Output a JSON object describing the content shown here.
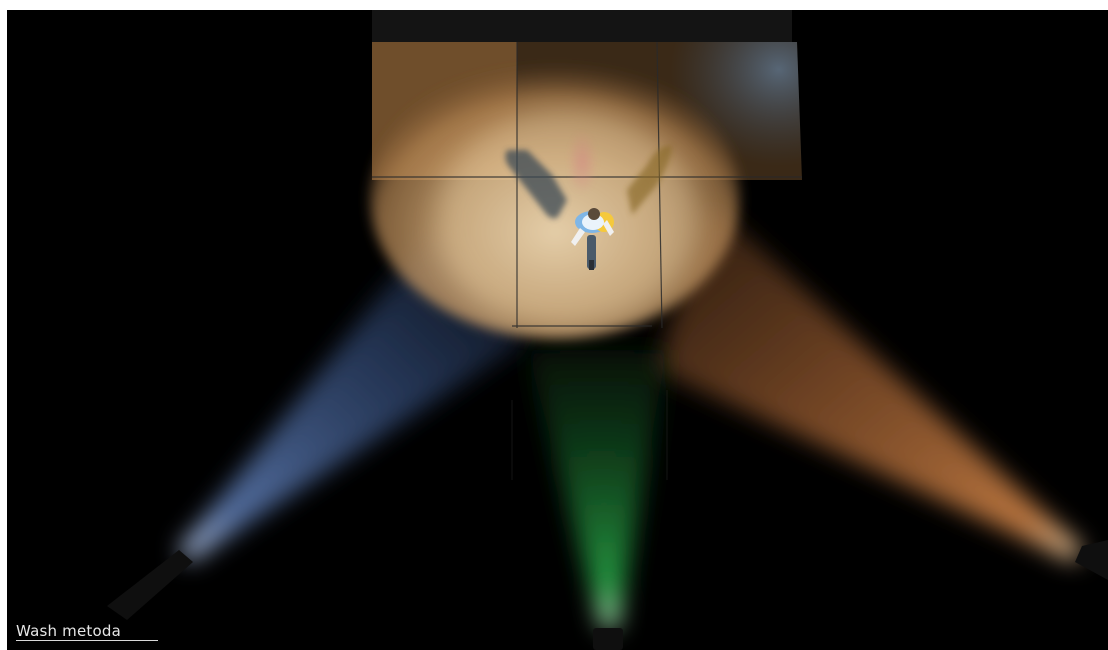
{
  "caption": {
    "label": "Wash metoda"
  },
  "scene": {
    "lights": [
      {
        "name": "blue",
        "color": "#5a7fbf"
      },
      {
        "name": "green",
        "color": "#1f9a3a"
      },
      {
        "name": "orange",
        "color": "#e0924a"
      }
    ],
    "background": "#000000",
    "stage_color": "#2a2a2a"
  }
}
